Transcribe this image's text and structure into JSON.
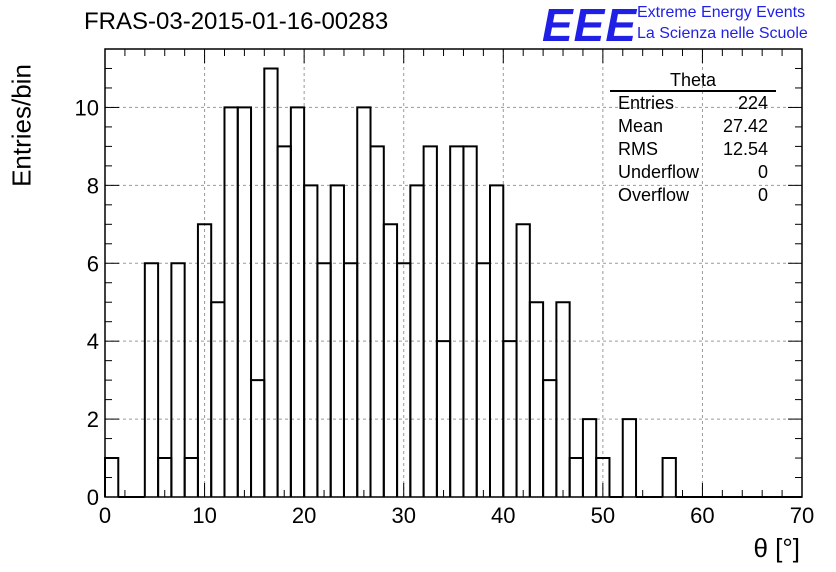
{
  "title": "FRAS-03-2015-01-16-00283",
  "logo": {
    "mark": "EEE",
    "line1": "Extreme Energy Events",
    "line2": "La Scienza nelle Scuole",
    "color": "#1f1fe6"
  },
  "stats": {
    "name": "Theta",
    "rows": [
      {
        "label": "Entries",
        "value": "224"
      },
      {
        "label": "Mean",
        "value": "27.42"
      },
      {
        "label": "RMS",
        "value": "12.54"
      },
      {
        "label": "Underflow",
        "value": "0"
      },
      {
        "label": "Overflow",
        "value": "0"
      }
    ]
  },
  "chart_data": {
    "type": "bar",
    "title": "FRAS-03-2015-01-16-00283",
    "xlabel": "θ [°]",
    "ylabel": "Entries/bin",
    "xlim": [
      0,
      70
    ],
    "ylim": [
      0,
      11.5
    ],
    "bin_width": 1.3333,
    "bin_edges_start": 0,
    "values": [
      1,
      0,
      0,
      6,
      1,
      6,
      1,
      7,
      5,
      10,
      10,
      3,
      11,
      9,
      10,
      8,
      6,
      8,
      6,
      10,
      9,
      7,
      6,
      8,
      9,
      4,
      9,
      9,
      6,
      8,
      4,
      7,
      5,
      3,
      5,
      1,
      2,
      1,
      0,
      2,
      0,
      0,
      1,
      0,
      0,
      0,
      0,
      0,
      0,
      0,
      0,
      0,
      0
    ],
    "xticks": [
      0,
      10,
      20,
      30,
      40,
      50,
      60,
      70
    ],
    "yticks": [
      0,
      2,
      4,
      6,
      8,
      10
    ],
    "grid": true,
    "line_color": "#000000",
    "grid_color": "#9a9a9a"
  }
}
